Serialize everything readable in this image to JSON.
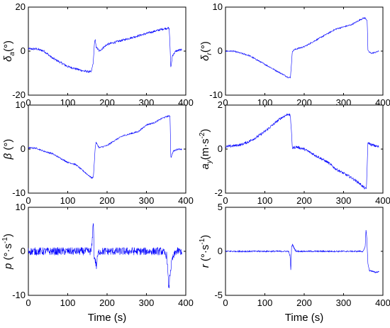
{
  "figure": {
    "xlabel": "Time (s)",
    "color": "#0000ff"
  },
  "chart_data": [
    {
      "id": "delta_a",
      "type": "line",
      "ylabel": {
        "base": "δ",
        "sub": "a",
        "rest": "(°)"
      },
      "xlim": [
        0,
        400
      ],
      "ylim": [
        -20,
        20
      ],
      "xticks": [
        0,
        100,
        200,
        300,
        400
      ],
      "yticks": [
        -20,
        0,
        20
      ],
      "xtick_labels": [
        "0",
        "100",
        "200",
        "300",
        "400"
      ],
      "ytick_labels": [
        "-20",
        "0",
        "20"
      ],
      "noise": 0.5,
      "series": [
        {
          "x": [
            0,
            20,
            40,
            60,
            80,
            100,
            120,
            140,
            160,
            165,
            168,
            170,
            172,
            180,
            200,
            220,
            240,
            260,
            280,
            300,
            320,
            340,
            355,
            358,
            360,
            362,
            366,
            375,
            385,
            390
          ],
          "y": [
            1,
            1,
            0,
            -3,
            -5,
            -7,
            -8,
            -9,
            -9.5,
            -5,
            4,
            5,
            2,
            0,
            3,
            4,
            5,
            6,
            7,
            8,
            9,
            10,
            10.5,
            10,
            2,
            -8,
            -2,
            0,
            0.5,
            0.5
          ]
        }
      ]
    },
    {
      "id": "delta_r",
      "type": "line",
      "ylabel": {
        "base": "δ",
        "sub": "r",
        "rest": "(°)"
      },
      "xlim": [
        0,
        400
      ],
      "ylim": [
        -10,
        10
      ],
      "xticks": [
        0,
        100,
        200,
        300,
        400
      ],
      "yticks": [
        -10,
        0,
        10
      ],
      "xtick_labels": [
        "0",
        "100",
        "200",
        "300",
        "400"
      ],
      "ytick_labels": [
        "-10",
        "0",
        "10"
      ],
      "noise": 0.15,
      "series": [
        {
          "x": [
            0,
            20,
            40,
            60,
            80,
            100,
            120,
            140,
            160,
            165,
            170,
            175,
            180,
            200,
            220,
            240,
            260,
            280,
            300,
            320,
            340,
            350,
            355,
            360,
            362,
            370,
            380,
            390
          ],
          "y": [
            0,
            0,
            -0.5,
            -1,
            -2,
            -3,
            -4,
            -5,
            -6,
            -6,
            0,
            0.3,
            0.5,
            1,
            2,
            3,
            4,
            5,
            5.5,
            6,
            7,
            7.5,
            7.5,
            7,
            0,
            -0.5,
            -0.3,
            0
          ]
        }
      ]
    },
    {
      "id": "beta",
      "type": "line",
      "ylabel": {
        "base": "β",
        "sub": "",
        "rest": " (°)"
      },
      "xlim": [
        0,
        400
      ],
      "ylim": [
        -10,
        10
      ],
      "xticks": [
        0,
        100,
        200,
        300,
        400
      ],
      "yticks": [
        -10,
        0,
        10
      ],
      "xtick_labels": [
        "0",
        "100",
        "200",
        "300",
        "400"
      ],
      "ytick_labels": [
        "-10",
        "0",
        "10"
      ],
      "noise": 0.15,
      "series": [
        {
          "x": [
            0,
            20,
            40,
            60,
            80,
            100,
            120,
            140,
            160,
            165,
            170,
            172,
            180,
            200,
            220,
            240,
            260,
            280,
            300,
            320,
            340,
            355,
            360,
            362,
            368,
            380,
            390
          ],
          "y": [
            0.3,
            0.2,
            -0.5,
            -1,
            -2,
            -3,
            -3.5,
            -5,
            -6.5,
            -6.5,
            0.5,
            1.5,
            0.3,
            0.8,
            2,
            3,
            3.5,
            4,
            5.5,
            6,
            7,
            7.5,
            7.5,
            -2,
            -0.5,
            0,
            0
          ]
        }
      ]
    },
    {
      "id": "a_y",
      "type": "line",
      "ylabel": {
        "base": "a",
        "sub": "y",
        "rest": "(m·s",
        "sup": "-2",
        "close": ")"
      },
      "xlim": [
        0,
        400
      ],
      "ylim": [
        -2,
        2
      ],
      "xticks": [
        0,
        100,
        200,
        300,
        400
      ],
      "yticks": [
        -2,
        0,
        2
      ],
      "xtick_labels": [
        "0",
        "100",
        "200",
        "300",
        "400"
      ],
      "ytick_labels": [
        "-2",
        "0",
        "2"
      ],
      "noise": 0.06,
      "series": [
        {
          "x": [
            0,
            20,
            40,
            60,
            80,
            100,
            120,
            140,
            160,
            165,
            170,
            180,
            200,
            220,
            240,
            260,
            280,
            300,
            320,
            340,
            355,
            358,
            362,
            370,
            380,
            390
          ],
          "y": [
            0.1,
            0.15,
            0.2,
            0.35,
            0.55,
            0.8,
            1.1,
            1.4,
            1.6,
            1.5,
            0.05,
            0.1,
            0,
            -0.2,
            -0.4,
            -0.6,
            -0.9,
            -1.1,
            -1.3,
            -1.55,
            -1.8,
            -1.8,
            0.3,
            0.2,
            0.15,
            0.1
          ]
        }
      ]
    },
    {
      "id": "p",
      "type": "line",
      "ylabel": {
        "base": "p",
        "sub": "",
        "rest": " (°·s",
        "sup": "-1",
        "close": ")"
      },
      "xlim": [
        0,
        400
      ],
      "ylim": [
        -10,
        10
      ],
      "xticks": [
        0,
        100,
        200,
        300,
        400
      ],
      "yticks": [
        -10,
        0,
        10
      ],
      "xtick_labels": [
        "0",
        "100",
        "200",
        "300",
        "400"
      ],
      "ytick_labels": [
        "-10",
        "0",
        "10"
      ],
      "noise": 0.9,
      "series": [
        {
          "x": [
            0,
            100,
            160,
            163,
            165,
            167,
            170,
            173,
            176,
            180,
            250,
            340,
            352,
            355,
            357,
            360,
            365,
            375,
            390
          ],
          "y": [
            0,
            0,
            0,
            3,
            8,
            -1,
            -2,
            -3.5,
            -1,
            0,
            0,
            0,
            -1,
            -6,
            -8.5,
            -5,
            -2,
            0,
            0
          ]
        }
      ]
    },
    {
      "id": "r",
      "type": "line",
      "ylabel": {
        "base": "r",
        "sub": "",
        "rest": " (°·s",
        "sup": "-1",
        "close": ")"
      },
      "xlim": [
        0,
        400
      ],
      "ylim": [
        -5,
        5
      ],
      "xticks": [
        0,
        100,
        200,
        300,
        400
      ],
      "yticks": [
        -5,
        0,
        5
      ],
      "xtick_labels": [
        "0",
        "100",
        "200",
        "300",
        "400"
      ],
      "ytick_labels": [
        "-5",
        "0",
        "5"
      ],
      "noise": 0.08,
      "series": [
        {
          "x": [
            0,
            100,
            160,
            164,
            166,
            168,
            170,
            175,
            180,
            250,
            350,
            355,
            357,
            359,
            362,
            366,
            370,
            380,
            390
          ],
          "y": [
            0,
            0,
            0,
            -0.5,
            -2.2,
            0.5,
            0.8,
            0.3,
            0,
            0,
            0,
            0.5,
            2.5,
            1.5,
            -1.5,
            -2.2,
            -2.2,
            -2.4,
            -2.3
          ]
        }
      ]
    }
  ]
}
